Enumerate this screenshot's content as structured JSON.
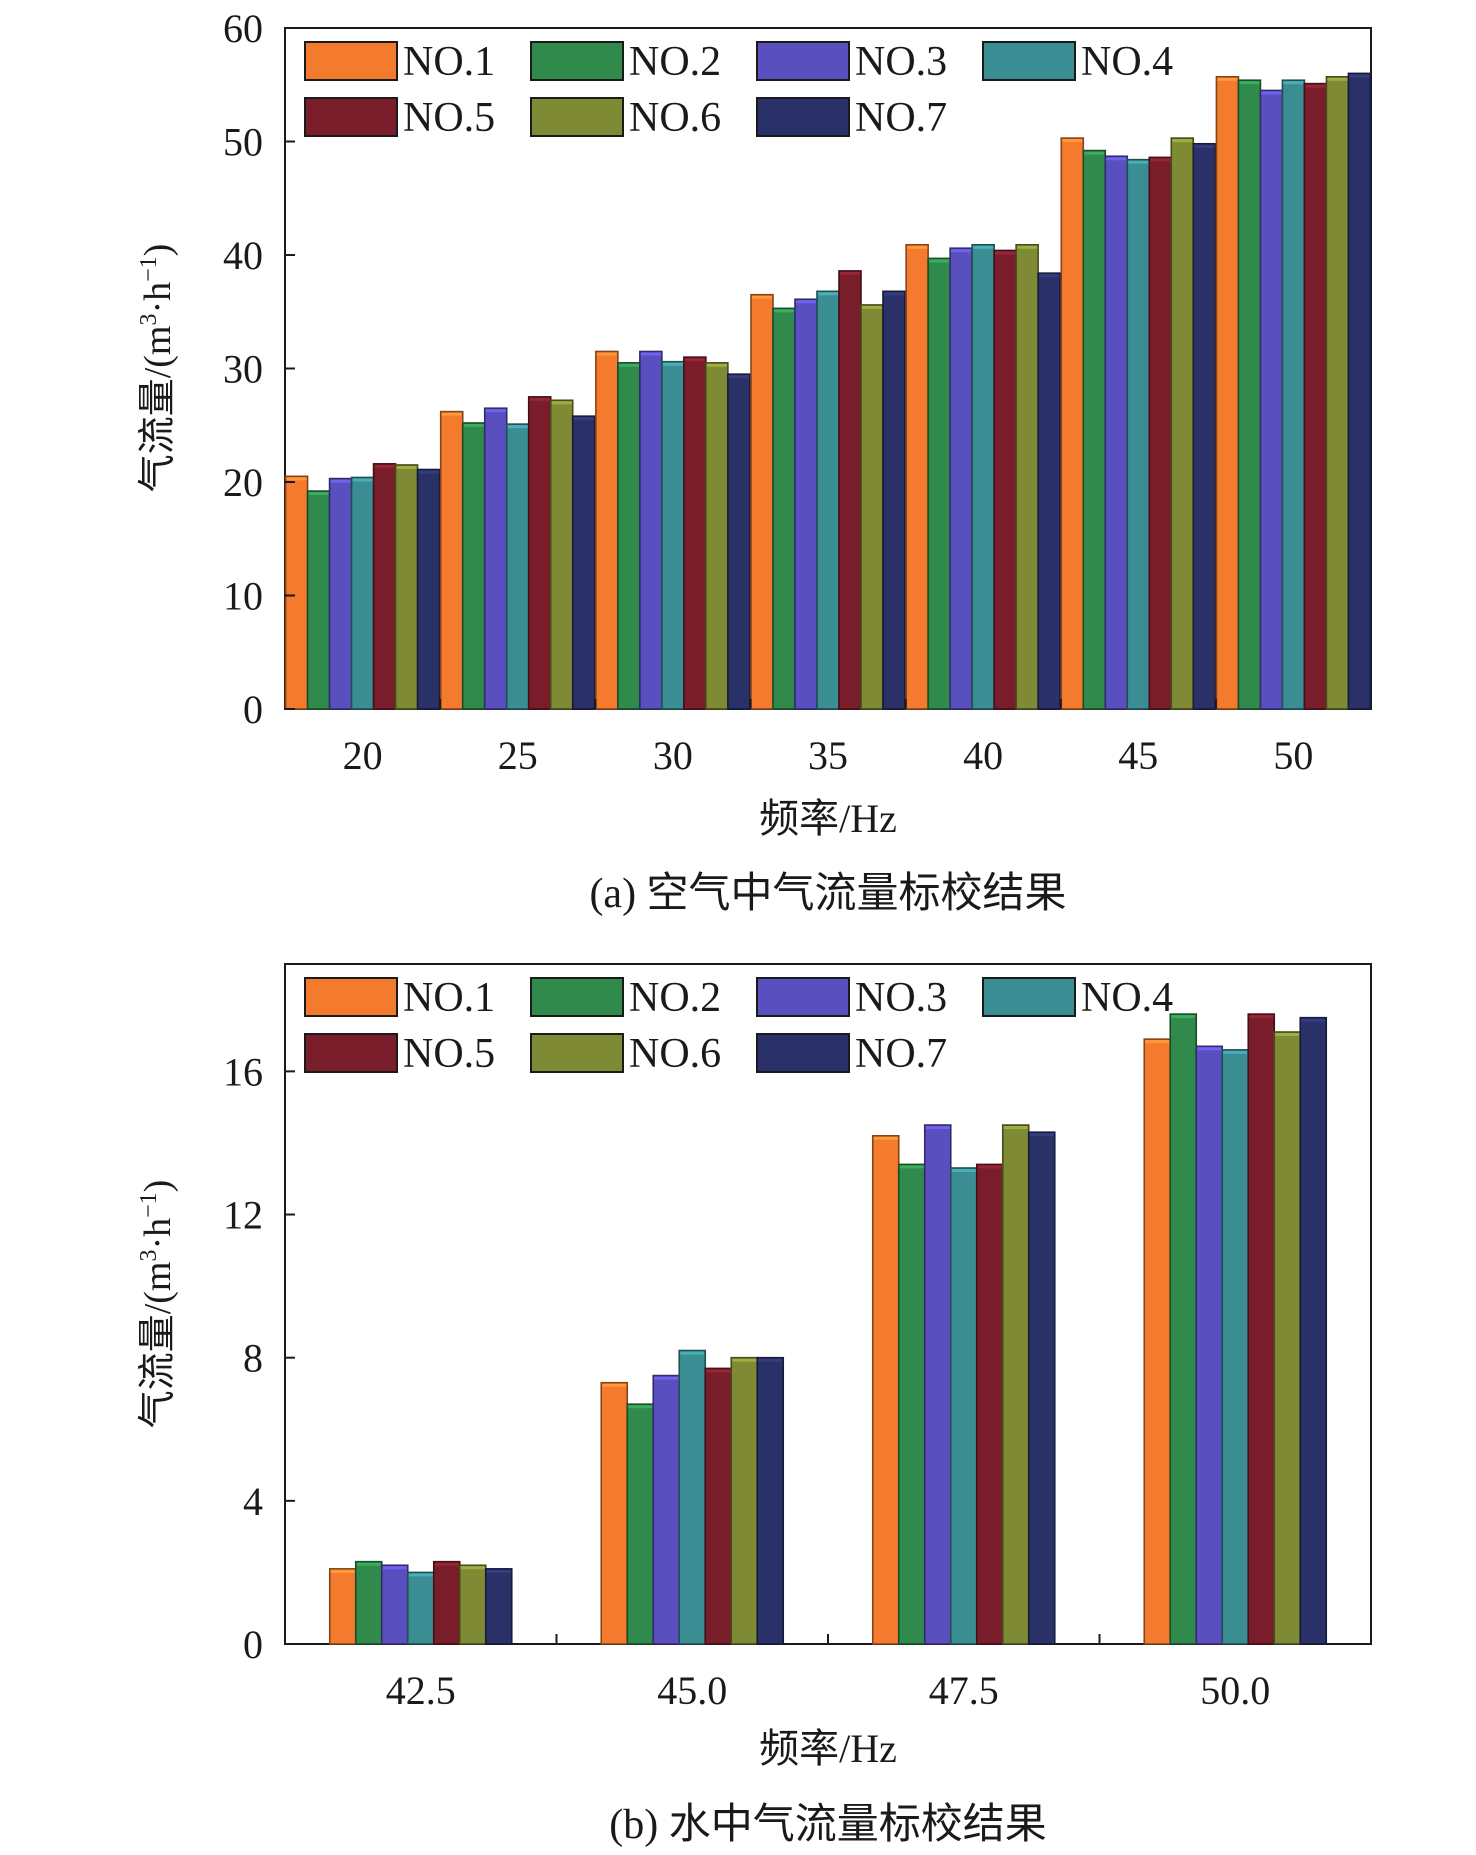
{
  "chart_data": [
    {
      "type": "bar",
      "caption": "(a) 空气中气流量标校结果",
      "xlabel": "频率/Hz",
      "ylabel_main": "气流量/(m",
      "ylabel_sup1": "3",
      "ylabel_mid": "·h",
      "ylabel_sup2": "−1",
      "ylabel_end": ")",
      "ylim": [
        0,
        60
      ],
      "yticks": [
        0,
        10,
        20,
        30,
        40,
        50,
        60
      ],
      "categories": [
        "20",
        "25",
        "30",
        "35",
        "40",
        "45",
        "50"
      ],
      "legend_position": "top-left",
      "series": [
        {
          "name": "NO.1",
          "values": [
            20.5,
            26.2,
            31.5,
            36.5,
            40.9,
            50.3,
            55.7
          ]
        },
        {
          "name": "NO.2",
          "values": [
            19.2,
            25.2,
            30.5,
            35.3,
            39.7,
            49.2,
            55.4
          ]
        },
        {
          "name": "NO.3",
          "values": [
            20.3,
            26.5,
            31.5,
            36.1,
            40.6,
            48.7,
            54.5
          ]
        },
        {
          "name": "NO.4",
          "values": [
            20.4,
            25.1,
            30.6,
            36.8,
            40.9,
            48.4,
            55.4
          ]
        },
        {
          "name": "NO.5",
          "values": [
            21.6,
            27.5,
            31.0,
            38.6,
            40.4,
            48.6,
            55.1
          ]
        },
        {
          "name": "NO.6",
          "values": [
            21.5,
            27.2,
            30.5,
            35.6,
            40.9,
            50.3,
            55.7
          ]
        },
        {
          "name": "NO.7",
          "values": [
            21.1,
            25.8,
            29.5,
            36.8,
            38.4,
            49.8,
            56.0
          ]
        }
      ]
    },
    {
      "type": "bar",
      "caption": "(b) 水中气流量标校结果",
      "xlabel": "频率/Hz",
      "ylabel_main": "气流量/(m",
      "ylabel_sup1": "3",
      "ylabel_mid": "·h",
      "ylabel_sup2": "−1",
      "ylabel_end": ")",
      "ylim": [
        0,
        19
      ],
      "yticks": [
        0,
        4,
        8,
        12,
        16
      ],
      "categories": [
        "42.5",
        "45.0",
        "47.5",
        "50.0"
      ],
      "legend_position": "top-left",
      "series": [
        {
          "name": "NO.1",
          "values": [
            2.1,
            7.3,
            14.2,
            16.9
          ]
        },
        {
          "name": "NO.2",
          "values": [
            2.3,
            6.7,
            13.4,
            17.6
          ]
        },
        {
          "name": "NO.3",
          "values": [
            2.2,
            7.5,
            14.5,
            16.7
          ]
        },
        {
          "name": "NO.4",
          "values": [
            2.0,
            8.2,
            13.3,
            16.6
          ]
        },
        {
          "name": "NO.5",
          "values": [
            2.3,
            7.7,
            13.4,
            17.6
          ]
        },
        {
          "name": "NO.6",
          "values": [
            2.2,
            8.0,
            14.5,
            17.1
          ]
        },
        {
          "name": "NO.7",
          "values": [
            2.1,
            8.0,
            14.3,
            17.5
          ]
        }
      ]
    }
  ],
  "colors": {
    "NO.1": "#f47a2e",
    "NO.2": "#2f8a4c",
    "NO.3": "#5a4fbf",
    "NO.4": "#3a8d93",
    "NO.5": "#7a1d2a",
    "NO.6": "#7f8a34",
    "NO.7": "#2a3168",
    "axis": "#1a1a1a"
  }
}
